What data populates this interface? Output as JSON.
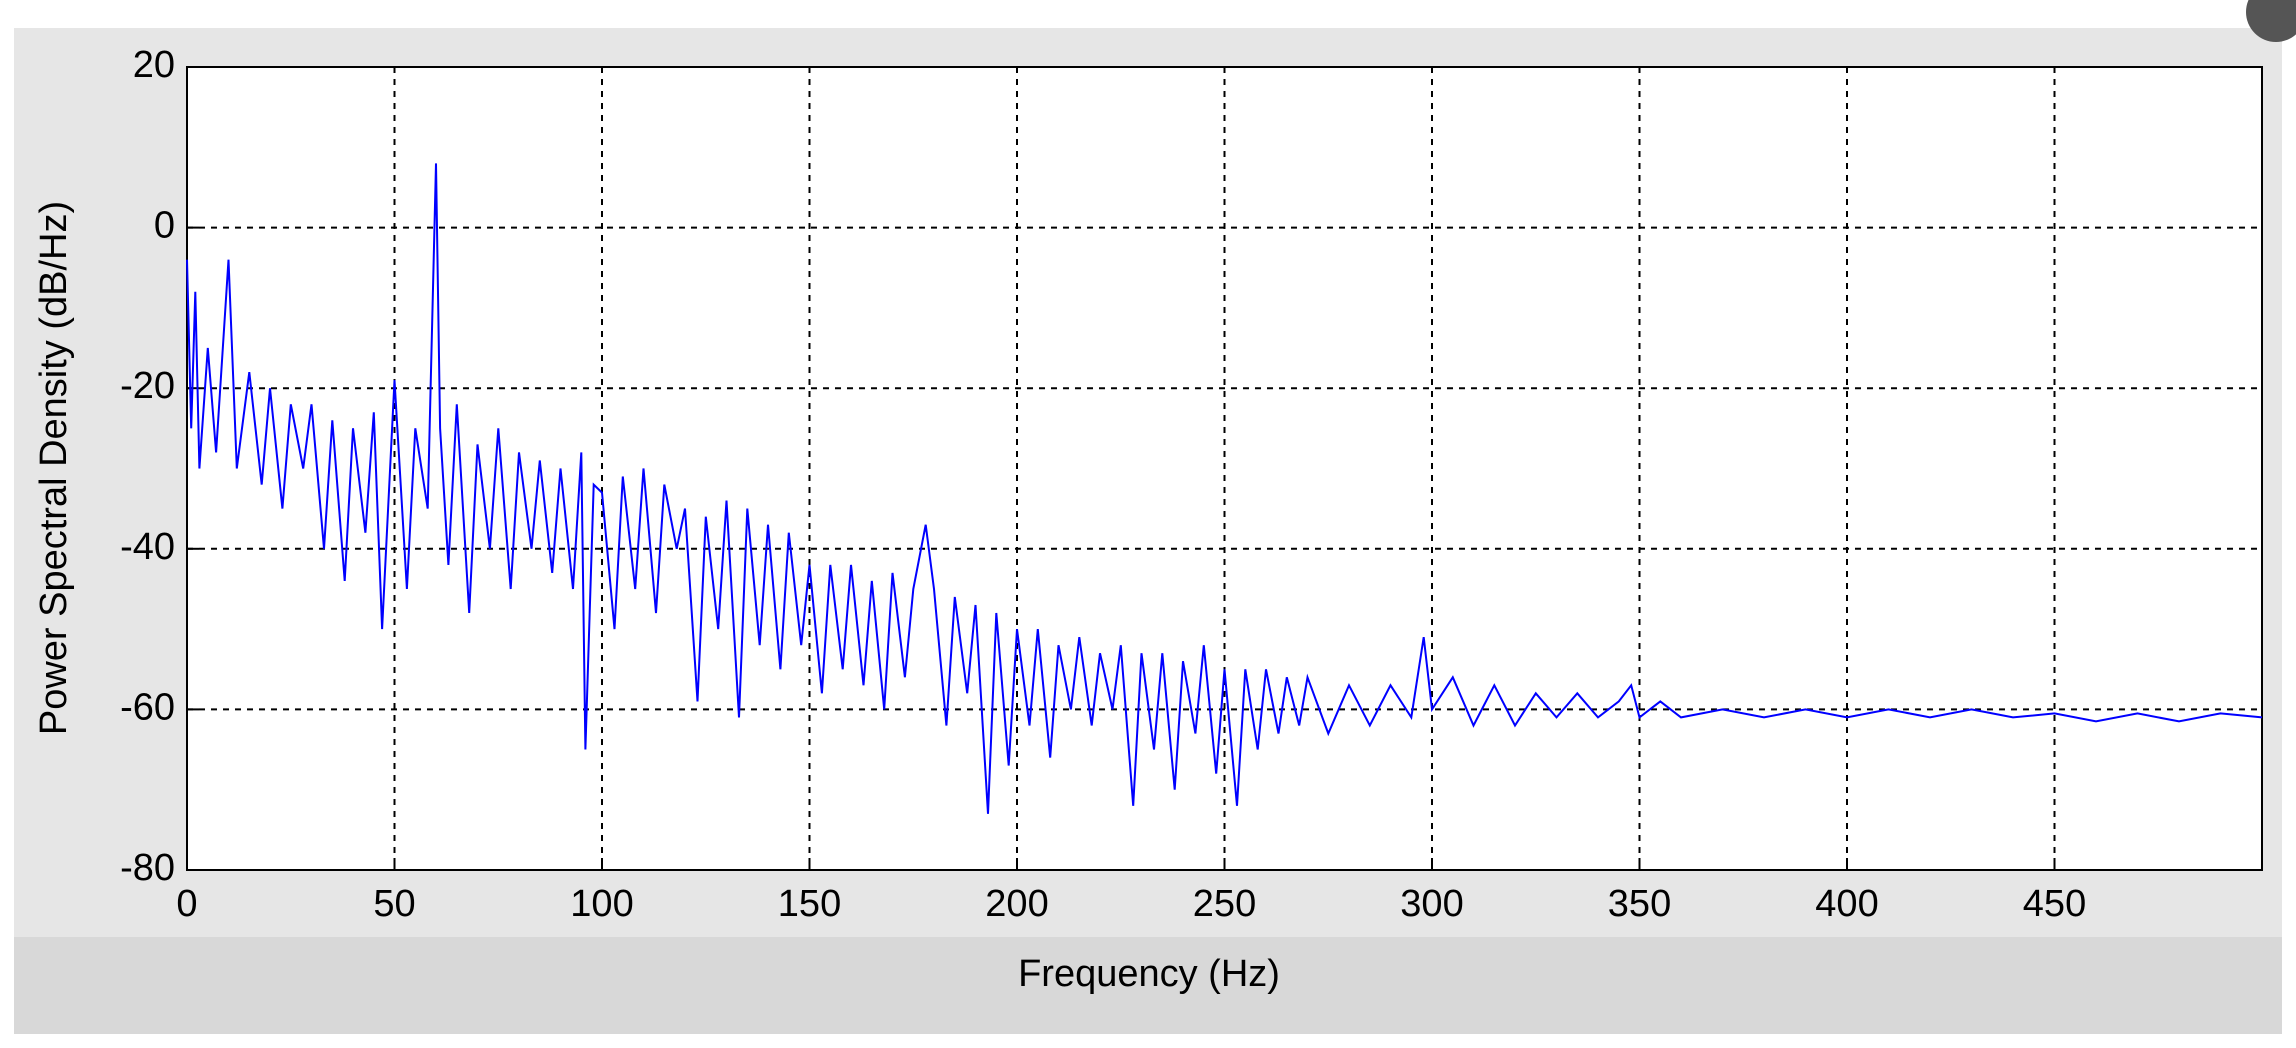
{
  "chart_data": {
    "type": "line",
    "xlabel": "Frequency (Hz)",
    "ylabel": "Power Spectral Density (dB/Hz)",
    "xlim": [
      0,
      500
    ],
    "xticks": [
      0,
      50,
      100,
      150,
      200,
      250,
      300,
      350,
      400,
      450
    ],
    "ylim": [
      -80,
      20
    ],
    "yticks": [
      -80,
      -60,
      -40,
      -20,
      0,
      20
    ],
    "grid": true,
    "series": [
      {
        "color": "#0000ff",
        "x": [
          0,
          1,
          2,
          3,
          5,
          7,
          10,
          12,
          15,
          18,
          20,
          23,
          25,
          28,
          30,
          33,
          35,
          38,
          40,
          43,
          45,
          47,
          50,
          53,
          55,
          58,
          60,
          61,
          63,
          65,
          68,
          70,
          73,
          75,
          78,
          80,
          83,
          85,
          88,
          90,
          93,
          95,
          96,
          98,
          100,
          103,
          105,
          108,
          110,
          113,
          115,
          118,
          120,
          123,
          125,
          128,
          130,
          133,
          135,
          138,
          140,
          143,
          145,
          148,
          150,
          153,
          155,
          158,
          160,
          163,
          165,
          168,
          170,
          173,
          175,
          178,
          180,
          183,
          185,
          188,
          190,
          193,
          195,
          198,
          200,
          203,
          205,
          208,
          210,
          213,
          215,
          218,
          220,
          223,
          225,
          228,
          230,
          233,
          235,
          238,
          240,
          243,
          245,
          248,
          250,
          253,
          255,
          258,
          260,
          263,
          265,
          268,
          270,
          275,
          280,
          285,
          290,
          295,
          298,
          300,
          305,
          310,
          315,
          320,
          325,
          330,
          335,
          340,
          345,
          348,
          350,
          355,
          360,
          370,
          380,
          390,
          400,
          410,
          420,
          430,
          440,
          450,
          460,
          470,
          480,
          490,
          500
        ],
        "values": [
          -4,
          -25,
          -8,
          -30,
          -15,
          -28,
          -4,
          -30,
          -18,
          -32,
          -20,
          -35,
          -22,
          -30,
          -22,
          -40,
          -24,
          -44,
          -25,
          -38,
          -23,
          -50,
          -19,
          -45,
          -25,
          -35,
          8,
          -25,
          -42,
          -22,
          -48,
          -27,
          -40,
          -25,
          -45,
          -28,
          -40,
          -29,
          -43,
          -30,
          -45,
          -28,
          -65,
          -32,
          -33,
          -50,
          -31,
          -45,
          -30,
          -48,
          -32,
          -40,
          -35,
          -59,
          -36,
          -50,
          -34,
          -61,
          -35,
          -52,
          -37,
          -55,
          -38,
          -52,
          -42,
          -58,
          -42,
          -55,
          -42,
          -57,
          -44,
          -60,
          -43,
          -56,
          -45,
          -37,
          -45,
          -62,
          -46,
          -58,
          -47,
          -73,
          -48,
          -67,
          -50,
          -62,
          -50,
          -66,
          -52,
          -60,
          -51,
          -62,
          -53,
          -60,
          -52,
          -72,
          -53,
          -65,
          -53,
          -70,
          -54,
          -63,
          -52,
          -68,
          -55,
          -72,
          -55,
          -65,
          -55,
          -63,
          -56,
          -62,
          -56,
          -63,
          -57,
          -62,
          -57,
          -61,
          -51,
          -60,
          -56,
          -62,
          -57,
          -62,
          -58,
          -61,
          -58,
          -61,
          -59,
          -57,
          -61,
          -59,
          -61,
          -60,
          -61,
          -60,
          -61,
          -60,
          -61,
          -60,
          -61,
          -60.5,
          -61.5,
          -60.5,
          -61.5,
          -60.5,
          -61
        ]
      }
    ]
  }
}
